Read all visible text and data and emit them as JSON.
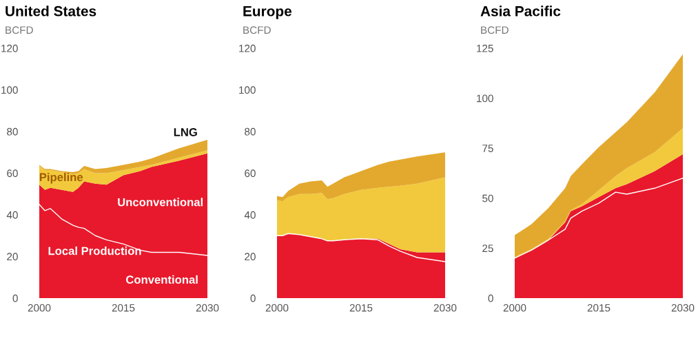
{
  "chart_data": [
    {
      "type": "area",
      "stacked": true,
      "title": "United States",
      "ylabel": "BCFD",
      "xlim": [
        2000,
        2030
      ],
      "xticks": [
        2000,
        2015,
        2030
      ],
      "ylim": [
        0,
        120
      ],
      "yticks": [
        0,
        20,
        40,
        60,
        80,
        100,
        120
      ],
      "x": [
        2000,
        2001,
        2002,
        2004,
        2006,
        2007,
        2008,
        2010,
        2012,
        2015,
        2018,
        2020,
        2025,
        2030
      ],
      "series": [
        {
          "color": "#e8192c",
          "values": [
            54.5,
            52,
            53,
            52,
            51,
            53,
            56,
            55,
            54.5,
            59,
            61,
            63,
            66,
            69.5
          ]
        },
        {
          "color": "#f2c93c",
          "values": [
            9,
            9.5,
            8.5,
            8.5,
            8.5,
            7,
            6,
            5,
            5.5,
            2.5,
            2,
            1,
            1.5,
            1.5
          ]
        },
        {
          "color": "#e3a92e",
          "values": [
            0.5,
            0.5,
            0.5,
            0.5,
            1,
            1,
            1.5,
            2,
            2.5,
            2.5,
            2.5,
            3,
            4.5,
            5
          ]
        },
        {
          "type": "line",
          "color": "#ffffff",
          "values": [
            45,
            42,
            43,
            38,
            35,
            34,
            33.5,
            30,
            28,
            26,
            23,
            22,
            22,
            20.5
          ]
        }
      ],
      "annotations": [
        "LNG",
        "Pipeline",
        "Unconventional",
        "Local Production",
        "Conventional"
      ]
    },
    {
      "type": "area",
      "stacked": true,
      "title": "Europe",
      "ylabel": "BCFD",
      "xlim": [
        2000,
        2030
      ],
      "xticks": [
        2000,
        2015,
        2030
      ],
      "ylim": [
        0,
        120
      ],
      "yticks": [
        0,
        20,
        40,
        60,
        80,
        100,
        120
      ],
      "x": [
        2000,
        2001,
        2002,
        2004,
        2006,
        2008,
        2009,
        2010,
        2012,
        2015,
        2018,
        2020,
        2022,
        2025,
        2030
      ],
      "series": [
        {
          "color": "#e8192c",
          "values": [
            30,
            30,
            31,
            30.5,
            29.5,
            28.5,
            27.5,
            27.5,
            28,
            28.5,
            28.5,
            26,
            23.5,
            22,
            22
          ]
        },
        {
          "color": "#f2c93c",
          "values": [
            17,
            16.5,
            17.5,
            19.5,
            20.5,
            22,
            20,
            20.5,
            22,
            23.5,
            24.5,
            27.5,
            30.5,
            33,
            36
          ]
        },
        {
          "color": "#e3a92e",
          "values": [
            2,
            2,
            3,
            5,
            6,
            6,
            6,
            7,
            8,
            9,
            11,
            12,
            12.5,
            13,
            12
          ]
        },
        {
          "type": "line",
          "color": "#ffffff",
          "values": [
            30,
            30,
            31,
            30.5,
            29.5,
            28.5,
            27.5,
            27.5,
            28,
            28.5,
            28,
            25,
            22.5,
            19.5,
            17.5
          ]
        }
      ]
    },
    {
      "type": "area",
      "stacked": true,
      "title": "Asia Pacific",
      "ylabel": "BCFD",
      "xlim": [
        2000,
        2030
      ],
      "xticks": [
        2000,
        2015,
        2030
      ],
      "ylim": [
        0,
        125
      ],
      "yticks": [
        0,
        25,
        50,
        75,
        100,
        125
      ],
      "x": [
        2000,
        2003,
        2006,
        2009,
        2010,
        2012,
        2015,
        2018,
        2020,
        2025,
        2030
      ],
      "series": [
        {
          "color": "#e8192c",
          "values": [
            20,
            24,
            29,
            38,
            43.5,
            46,
            50.5,
            55,
            57,
            63.5,
            72
          ]
        },
        {
          "color": "#f2c93c",
          "values": [
            0.5,
            0.5,
            0.5,
            0.5,
            0.5,
            1,
            3.5,
            6,
            8,
            9.5,
            13
          ]
        },
        {
          "color": "#e3a92e",
          "values": [
            11,
            12.5,
            15.5,
            16.5,
            17,
            20,
            21.5,
            22,
            23,
            30,
            37
          ]
        },
        {
          "type": "line",
          "color": "#ffffff",
          "values": [
            20,
            24,
            29,
            34.5,
            40,
            43.5,
            47.5,
            53,
            52,
            55,
            60
          ]
        }
      ]
    }
  ]
}
